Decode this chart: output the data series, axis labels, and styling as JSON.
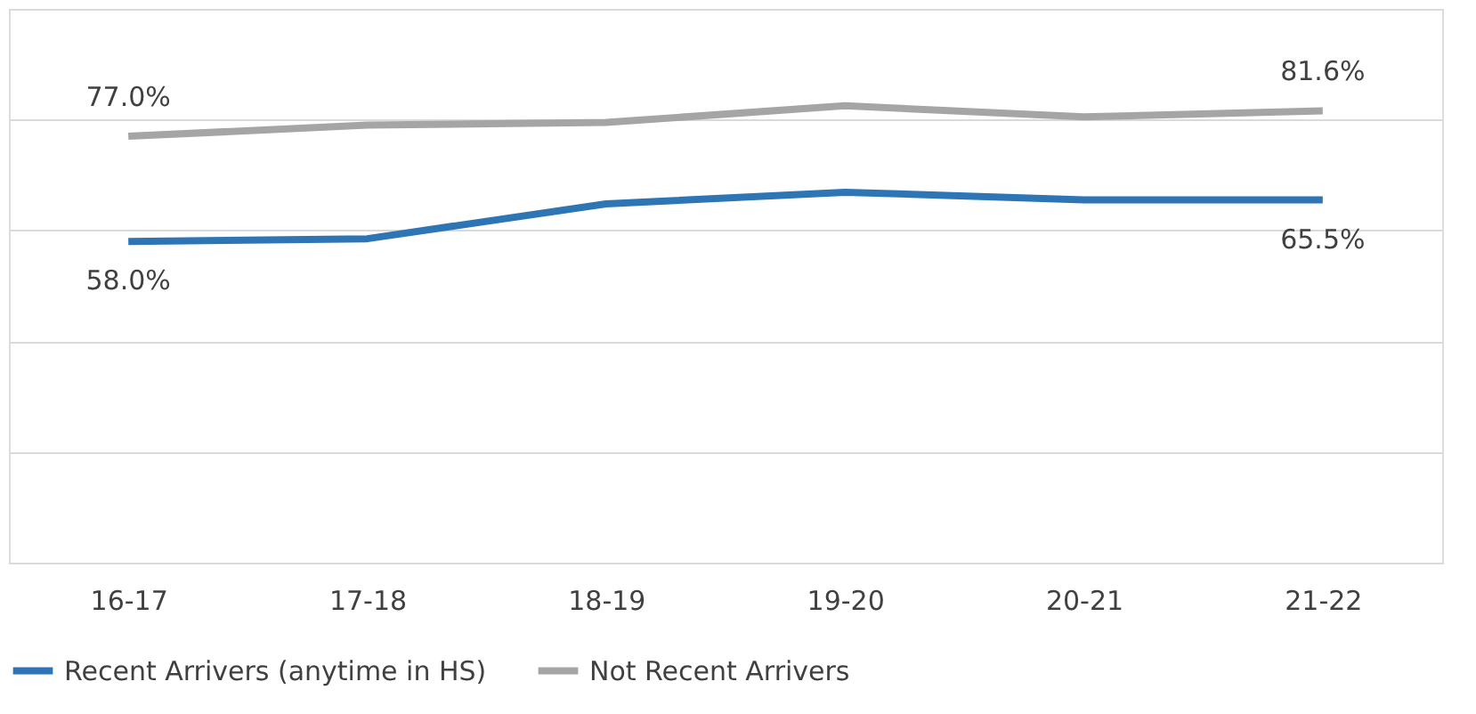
{
  "chart_data": {
    "type": "line",
    "categories": [
      "16-17",
      "17-18",
      "18-19",
      "19-20",
      "20-21",
      "21-22"
    ],
    "series": [
      {
        "name": "Recent Arrivers (anytime in HS)",
        "color": "#2e75b6",
        "values": [
          58.0,
          58.5,
          64.8,
          66.9,
          65.5,
          65.5
        ],
        "value_labels": [
          "58.0%",
          null,
          null,
          null,
          null,
          "65.5%"
        ]
      },
      {
        "name": "Not Recent Arrivers",
        "color": "#a5a5a5",
        "values": [
          77.0,
          79.0,
          79.5,
          82.5,
          80.5,
          81.6
        ],
        "value_labels": [
          "77.0%",
          null,
          null,
          null,
          null,
          "81.6%"
        ]
      }
    ],
    "ylim": [
      0,
      100
    ],
    "yticks": [
      0,
      20,
      40,
      60,
      80,
      100
    ],
    "grid": "y",
    "legend": "bottom",
    "tick_labels": "x",
    "marker": "none",
    "line_style": "solid"
  }
}
